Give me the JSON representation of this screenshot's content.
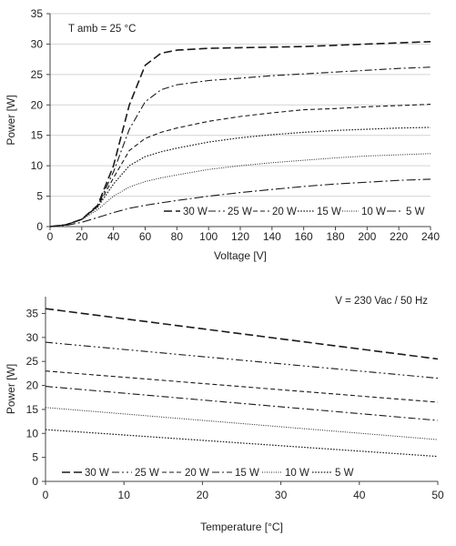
{
  "chart_data": [
    {
      "type": "line",
      "annotation": "T amb = 25 °C",
      "xlabel": "Voltage  [V]",
      "ylabel": "Power [W]",
      "xlim": [
        0,
        240
      ],
      "ylim": [
        0,
        35
      ],
      "xticks": [
        0,
        20,
        40,
        60,
        80,
        100,
        120,
        140,
        160,
        180,
        200,
        220,
        240
      ],
      "yticks": [
        0,
        5,
        10,
        15,
        20,
        25,
        30,
        35
      ],
      "grid": "horizontal",
      "legend_position": "bottom-right",
      "series": [
        {
          "name": "30 W",
          "dash": "9,4",
          "width": 1.6,
          "x": [
            0,
            10,
            20,
            30,
            40,
            50,
            60,
            70,
            80,
            100,
            120,
            140,
            160,
            180,
            200,
            220,
            240
          ],
          "y": [
            0,
            0.3,
            1.2,
            3.5,
            10,
            20,
            26.5,
            28.5,
            29,
            29.3,
            29.4,
            29.5,
            29.6,
            29.8,
            30,
            30.2,
            30.4
          ]
        },
        {
          "name": "25 W",
          "dash": "8,3,2,3",
          "width": 1.1,
          "x": [
            0,
            10,
            20,
            30,
            40,
            50,
            60,
            70,
            80,
            100,
            120,
            140,
            160,
            180,
            200,
            220,
            240
          ],
          "y": [
            0,
            0.3,
            1.2,
            3.4,
            9,
            16,
            20.5,
            22.5,
            23.3,
            24,
            24.4,
            24.8,
            25.1,
            25.4,
            25.7,
            26,
            26.2
          ]
        },
        {
          "name": "20 W",
          "dash": "5,3",
          "width": 1.1,
          "x": [
            0,
            10,
            20,
            30,
            40,
            50,
            60,
            70,
            80,
            100,
            120,
            140,
            160,
            180,
            200,
            220,
            240
          ],
          "y": [
            0,
            0.3,
            1.2,
            3.3,
            8,
            12.5,
            14.5,
            15.5,
            16.2,
            17.3,
            18.1,
            18.7,
            19.2,
            19.4,
            19.7,
            19.9,
            20.1
          ]
        },
        {
          "name": "15 W",
          "dash": "1.6,1.6",
          "width": 1.2,
          "x": [
            0,
            10,
            20,
            30,
            40,
            50,
            60,
            70,
            80,
            100,
            120,
            140,
            160,
            180,
            200,
            220,
            240
          ],
          "y": [
            0,
            0.3,
            1.2,
            3.2,
            7,
            10,
            11.5,
            12.3,
            12.9,
            13.9,
            14.6,
            15.1,
            15.5,
            15.8,
            16,
            16.2,
            16.3
          ]
        },
        {
          "name": "10 W",
          "dash": "1,1.5",
          "width": 1.0,
          "x": [
            0,
            10,
            20,
            30,
            40,
            50,
            60,
            70,
            80,
            100,
            120,
            140,
            160,
            180,
            200,
            220,
            240
          ],
          "y": [
            0,
            0.3,
            1.1,
            2.8,
            5,
            6.5,
            7.4,
            8,
            8.5,
            9.4,
            10,
            10.5,
            10.9,
            11.3,
            11.6,
            11.8,
            12
          ]
        },
        {
          "name": "5 W",
          "dash": "10,3,2,3",
          "width": 1.1,
          "x": [
            0,
            10,
            20,
            30,
            40,
            50,
            60,
            70,
            80,
            100,
            120,
            140,
            160,
            180,
            200,
            220,
            240
          ],
          "y": [
            0,
            0.2,
            0.7,
            1.5,
            2.3,
            3,
            3.5,
            3.9,
            4.3,
            5,
            5.6,
            6.1,
            6.6,
            7,
            7.3,
            7.6,
            7.8
          ]
        }
      ]
    },
    {
      "type": "line",
      "annotation": "V = 230 Vac  / 50 Hz",
      "xlabel": "Temperature [°C]",
      "ylabel": "Power [W]",
      "xlim": [
        0,
        50
      ],
      "ylim": [
        0,
        38.5
      ],
      "xticks": [
        0,
        10,
        20,
        30,
        40,
        50
      ],
      "yticks": [
        0,
        5,
        10,
        15,
        20,
        25,
        30,
        35
      ],
      "grid": "none",
      "legend_position": "bottom-left",
      "series": [
        {
          "name": "30 W",
          "dash": "9,4",
          "width": 1.6,
          "x": [
            0,
            50
          ],
          "y": [
            36,
            25.5
          ]
        },
        {
          "name": "25 W",
          "dash": "8,3,2,3,2,3",
          "width": 1.1,
          "x": [
            0,
            50
          ],
          "y": [
            29,
            21.5
          ]
        },
        {
          "name": "20 W",
          "dash": "5,3",
          "width": 1.1,
          "x": [
            0,
            50
          ],
          "y": [
            23,
            16.5
          ]
        },
        {
          "name": "15 W",
          "dash": "8,3,2,3",
          "width": 1.1,
          "x": [
            0,
            50
          ],
          "y": [
            19.8,
            12.7
          ]
        },
        {
          "name": "10 W",
          "dash": "1,1.5",
          "width": 1.0,
          "x": [
            0,
            50
          ],
          "y": [
            15.4,
            8.7
          ]
        },
        {
          "name": "5 W",
          "dash": "1.6,1.6",
          "width": 1.2,
          "x": [
            0,
            50
          ],
          "y": [
            10.8,
            5.2
          ]
        }
      ]
    }
  ]
}
